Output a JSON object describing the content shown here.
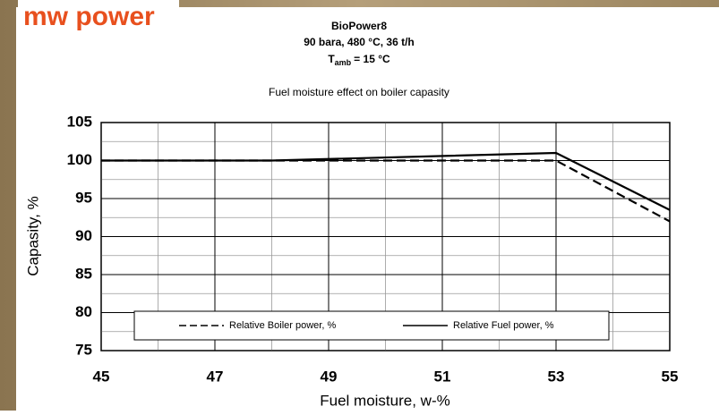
{
  "logo": {
    "brand": "mw power"
  },
  "chart_data": {
    "type": "line",
    "header_lines": [
      "BioPower8",
      "90 bara, 480 °C, 36 t/h"
    ],
    "header_temp": {
      "symbol": "T",
      "subscript": "amb",
      "rest": "= 15 °C"
    },
    "title": "Fuel moisture effect on boiler capasity",
    "xlabel": "Fuel moisture, w-%",
    "ylabel": "Capasity, %",
    "xlim": [
      45,
      55
    ],
    "xticks": [
      45,
      47,
      49,
      51,
      53,
      55
    ],
    "ylim": [
      75,
      105
    ],
    "yticks": [
      75,
      80,
      85,
      90,
      95,
      100,
      105
    ],
    "grid": true,
    "legend": "bottom",
    "series": [
      {
        "name": "Relative Boiler power, %",
        "color": "#000000",
        "dash": "dashed",
        "x": [
          45,
          53,
          55
        ],
        "values": [
          100,
          100,
          92
        ]
      },
      {
        "name": "Relative Fuel power, %",
        "color": "#000000",
        "dash": "solid",
        "x": [
          45,
          48,
          53,
          55
        ],
        "values": [
          100,
          100,
          101,
          93.5
        ]
      }
    ]
  }
}
